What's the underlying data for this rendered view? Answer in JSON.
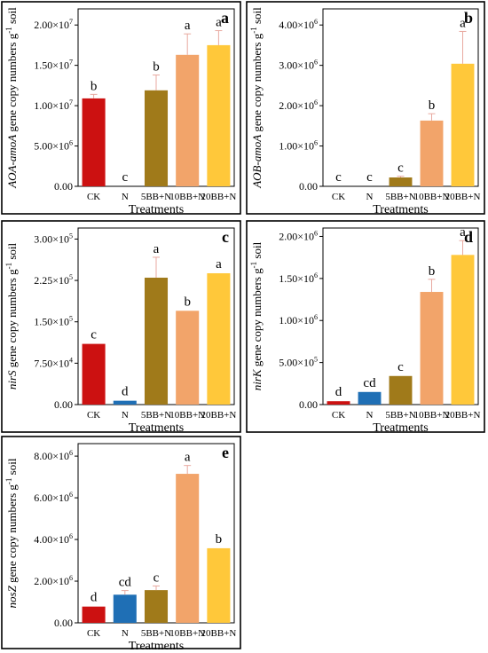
{
  "figure": {
    "panels_layout": "3 rows x 2 columns, panel e alone in bottom-left"
  },
  "colors": {
    "CK": "#cc1111",
    "N": "#1f6fb5",
    "5BB+N": "#a07a1a",
    "10BB+N": "#f2a46a",
    "20BB+N": "#ffc83a",
    "errorbar": "#e8a9a0",
    "frame": "#000000"
  },
  "chart_data": [
    {
      "id": "a",
      "type": "bar",
      "panel_letter": "a",
      "categories": [
        "CK",
        "N",
        "5BB+N",
        "10BB+N",
        "20BB+N"
      ],
      "values": [
        10900000,
        0,
        11900000,
        16300000,
        17500000
      ],
      "errors": [
        500000,
        0,
        1900000,
        2600000,
        1800000
      ],
      "letters": [
        "b",
        "c",
        "b",
        "a",
        "a"
      ],
      "xlabel": "Treatments",
      "ylabel_parts": [
        "AOA-amoA",
        " gene copy numbers g",
        "-1",
        " soil"
      ],
      "ylim": [
        0,
        22000000
      ],
      "ticks": [
        0,
        5000000,
        10000000,
        15000000,
        20000000
      ],
      "tick_labels": [
        {
          "m": "0.00",
          "e": ""
        },
        {
          "m": "5.00×10",
          "e": "6"
        },
        {
          "m": "1.00×10",
          "e": "7"
        },
        {
          "m": "1.50×10",
          "e": "7"
        },
        {
          "m": "2.00×10",
          "e": "7"
        }
      ]
    },
    {
      "id": "b",
      "type": "bar",
      "panel_letter": "b",
      "categories": [
        "CK",
        "N",
        "5BB+N",
        "10BB+N",
        "20BB+N"
      ],
      "values": [
        0,
        0,
        220000,
        1630000,
        3040000
      ],
      "errors": [
        0,
        0,
        30000,
        170000,
        800000
      ],
      "letters": [
        "c",
        "c",
        "c",
        "b",
        "a"
      ],
      "xlabel": "Treatments",
      "ylabel_parts": [
        "AOB-amoA",
        " gene copy numbers g",
        "-1",
        " soil"
      ],
      "ylim": [
        0,
        4400000
      ],
      "ticks": [
        0,
        1000000,
        2000000,
        3000000,
        4000000
      ],
      "tick_labels": [
        {
          "m": "0.00",
          "e": ""
        },
        {
          "m": "1.00×10",
          "e": "6"
        },
        {
          "m": "2.00×10",
          "e": "6"
        },
        {
          "m": "3.00×10",
          "e": "6"
        },
        {
          "m": "4.00×10",
          "e": "6"
        }
      ]
    },
    {
      "id": "c",
      "type": "bar",
      "panel_letter": "c",
      "categories": [
        "CK",
        "N",
        "5BB+N",
        "10BB+N",
        "20BB+N"
      ],
      "values": [
        110000,
        7000,
        230000,
        170000,
        238000
      ],
      "errors": [
        0,
        0,
        37000,
        0,
        0
      ],
      "letters": [
        "c",
        "d",
        "a",
        "b",
        "a"
      ],
      "xlabel": "Treatments",
      "ylabel_parts": [
        "nirS",
        " gene copy numbers g",
        "-1",
        " soil"
      ],
      "ylim": [
        0,
        320000
      ],
      "ticks": [
        0,
        75000,
        150000,
        225000,
        300000
      ],
      "tick_labels": [
        {
          "m": "0.00",
          "e": ""
        },
        {
          "m": "7.50×10",
          "e": "4"
        },
        {
          "m": "1.50×10",
          "e": "5"
        },
        {
          "m": "2.25×10",
          "e": "5"
        },
        {
          "m": "3.00×10",
          "e": "5"
        }
      ]
    },
    {
      "id": "d",
      "type": "bar",
      "panel_letter": "d",
      "categories": [
        "CK",
        "N",
        "5BB+N",
        "10BB+N",
        "20BB+N"
      ],
      "values": [
        40000,
        150000,
        340000,
        1340000,
        1780000
      ],
      "errors": [
        0,
        0,
        0,
        150000,
        170000
      ],
      "letters": [
        "d",
        "cd",
        "c",
        "b",
        "a"
      ],
      "xlabel": "Treatments",
      "ylabel_parts": [
        "nirK",
        " gene copy numbers g",
        "-1",
        " soil"
      ],
      "ylim": [
        0,
        2100000
      ],
      "ticks": [
        0,
        500000,
        1000000,
        1500000,
        2000000
      ],
      "tick_labels": [
        {
          "m": "0.00",
          "e": ""
        },
        {
          "m": "5.00×10",
          "e": "5"
        },
        {
          "m": "1.00×10",
          "e": "6"
        },
        {
          "m": "1.50×10",
          "e": "6"
        },
        {
          "m": "2.00×10",
          "e": "6"
        }
      ]
    },
    {
      "id": "e",
      "type": "bar",
      "panel_letter": "e",
      "categories": [
        "CK",
        "N",
        "5BB+N",
        "10BB+N",
        "20BB+N"
      ],
      "values": [
        780000,
        1350000,
        1570000,
        7150000,
        3580000
      ],
      "errors": [
        0,
        200000,
        200000,
        400000,
        0
      ],
      "letters": [
        "d",
        "cd",
        "c",
        "a",
        "b"
      ],
      "xlabel": "Treatments",
      "ylabel_parts": [
        "nosZ",
        " gene copy numbers g",
        "-1",
        " soil"
      ],
      "ylim": [
        0,
        8600000
      ],
      "ticks": [
        0,
        2000000,
        4000000,
        6000000,
        8000000
      ],
      "tick_labels": [
        {
          "m": "0.00",
          "e": ""
        },
        {
          "m": "2.00×10",
          "e": "6"
        },
        {
          "m": "4.00×10",
          "e": "6"
        },
        {
          "m": "6.00×10",
          "e": "6"
        },
        {
          "m": "8.00×10",
          "e": "6"
        }
      ]
    }
  ]
}
